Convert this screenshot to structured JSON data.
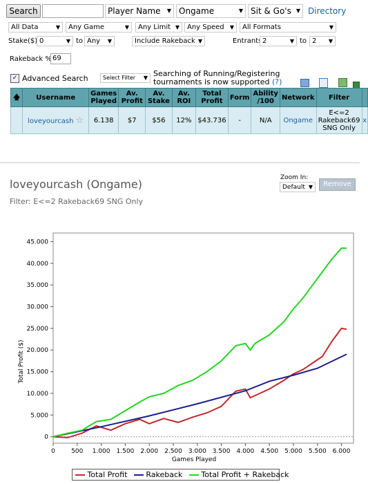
{
  "toolbar": {
    "search_label": "Search",
    "search_value": "",
    "player_field": "Player Name",
    "network_field": "Ongame",
    "game_field": "Sit & Go's",
    "directory_label": "Directory"
  },
  "filters": {
    "data": "All Data",
    "game": "Any Game",
    "limit": "Any Limit",
    "speed": "Any Speed",
    "formats": "All Formats",
    "stake_label": "Stake($)",
    "stake_from": "0",
    "to1": "to",
    "stake_to": "Any",
    "rakeback_mode": "Include Rakeback",
    "entrants_label": "Entrants",
    "entrants_from": "2",
    "to2": "to",
    "entrants_to": "2",
    "rakeback_label": "Rakeback %",
    "rakeback_value": "69",
    "advanced_label": "Advanced Search",
    "select_filter": "Select Filter",
    "notice_line1": "Searching of Running/Registering",
    "notice_line2": "tournaments is now supported",
    "notice_help": "(?)"
  },
  "table": {
    "headers": [
      "Username",
      "Games Played",
      "Av. Profit",
      "Av. Stake",
      "Av. ROI",
      "Total Profit",
      "Form",
      "Ability /100",
      "Network",
      "Filter"
    ],
    "row": {
      "username": "loveyourcash",
      "games_played": "6.138",
      "av_profit": "$7",
      "av_stake": "$56",
      "av_roi": "12%",
      "total_profit": "$43.736",
      "form": "-",
      "ability": "N/A",
      "network": "Ongame",
      "filter": "E<=2 Rakeback69 SNG Only",
      "remove": "x"
    }
  },
  "graph_panel": {
    "player_title": "loveyourcash (Ongame)",
    "filter_line": "Filter: E<=2 Rakeback69 SNG Only",
    "zoom_label": "Zoom In:",
    "zoom_value": "Default",
    "remove_label": "Remove"
  },
  "chart_data": {
    "type": "line",
    "xlabel": "Games Played",
    "ylabel": "Total Profit ($)",
    "xlim": [
      0,
      6250
    ],
    "ylim": [
      -1500,
      47000
    ],
    "x_ticks": [
      "0",
      "500",
      "1.000",
      "1.500",
      "2.000",
      "2.500",
      "3.000",
      "3.500",
      "4.000",
      "4.500",
      "5.000",
      "5.500",
      "6.000"
    ],
    "y_ticks": [
      "0",
      "5.000",
      "10.000",
      "15.000",
      "20.000",
      "25.000",
      "30.000",
      "35.000",
      "40.000",
      "45.000"
    ],
    "legend_position": "bottom",
    "series": [
      {
        "name": "Total Profit",
        "color": "#c0282b",
        "x": [
          0,
          300,
          600,
          900,
          1200,
          1500,
          1800,
          2000,
          2300,
          2600,
          2900,
          3200,
          3500,
          3800,
          4000,
          4100,
          4200,
          4500,
          4800,
          5000,
          5200,
          5400,
          5600,
          5800,
          6000,
          6100
        ],
        "y": [
          0,
          -200,
          800,
          2500,
          1500,
          3000,
          4000,
          3000,
          4200,
          3300,
          4500,
          5500,
          7000,
          10500,
          11000,
          9000,
          9500,
          11000,
          13000,
          14500,
          15500,
          17000,
          18500,
          22000,
          25000,
          24800
        ]
      },
      {
        "name": "Rakeback",
        "color": "#1c1c8c",
        "x": [
          0,
          1000,
          2000,
          3000,
          4000,
          4500,
          5000,
          5500,
          6100
        ],
        "y": [
          0,
          2300,
          4800,
          7600,
          10600,
          12800,
          14200,
          15800,
          19000
        ]
      },
      {
        "name": "Total Profit + Rakeback",
        "color": "#22d422",
        "x": [
          0,
          300,
          600,
          900,
          1200,
          1500,
          1800,
          2000,
          2300,
          2600,
          2900,
          3200,
          3500,
          3800,
          4000,
          4100,
          4200,
          4500,
          4800,
          5000,
          5200,
          5400,
          5600,
          5800,
          6000,
          6100
        ],
        "y": [
          0,
          800,
          1500,
          3500,
          4000,
          6000,
          8000,
          9200,
          10000,
          11800,
          13000,
          15000,
          17500,
          21000,
          21500,
          20000,
          21500,
          23500,
          26500,
          29500,
          32000,
          35000,
          38000,
          41000,
          43500,
          43500
        ]
      }
    ]
  }
}
